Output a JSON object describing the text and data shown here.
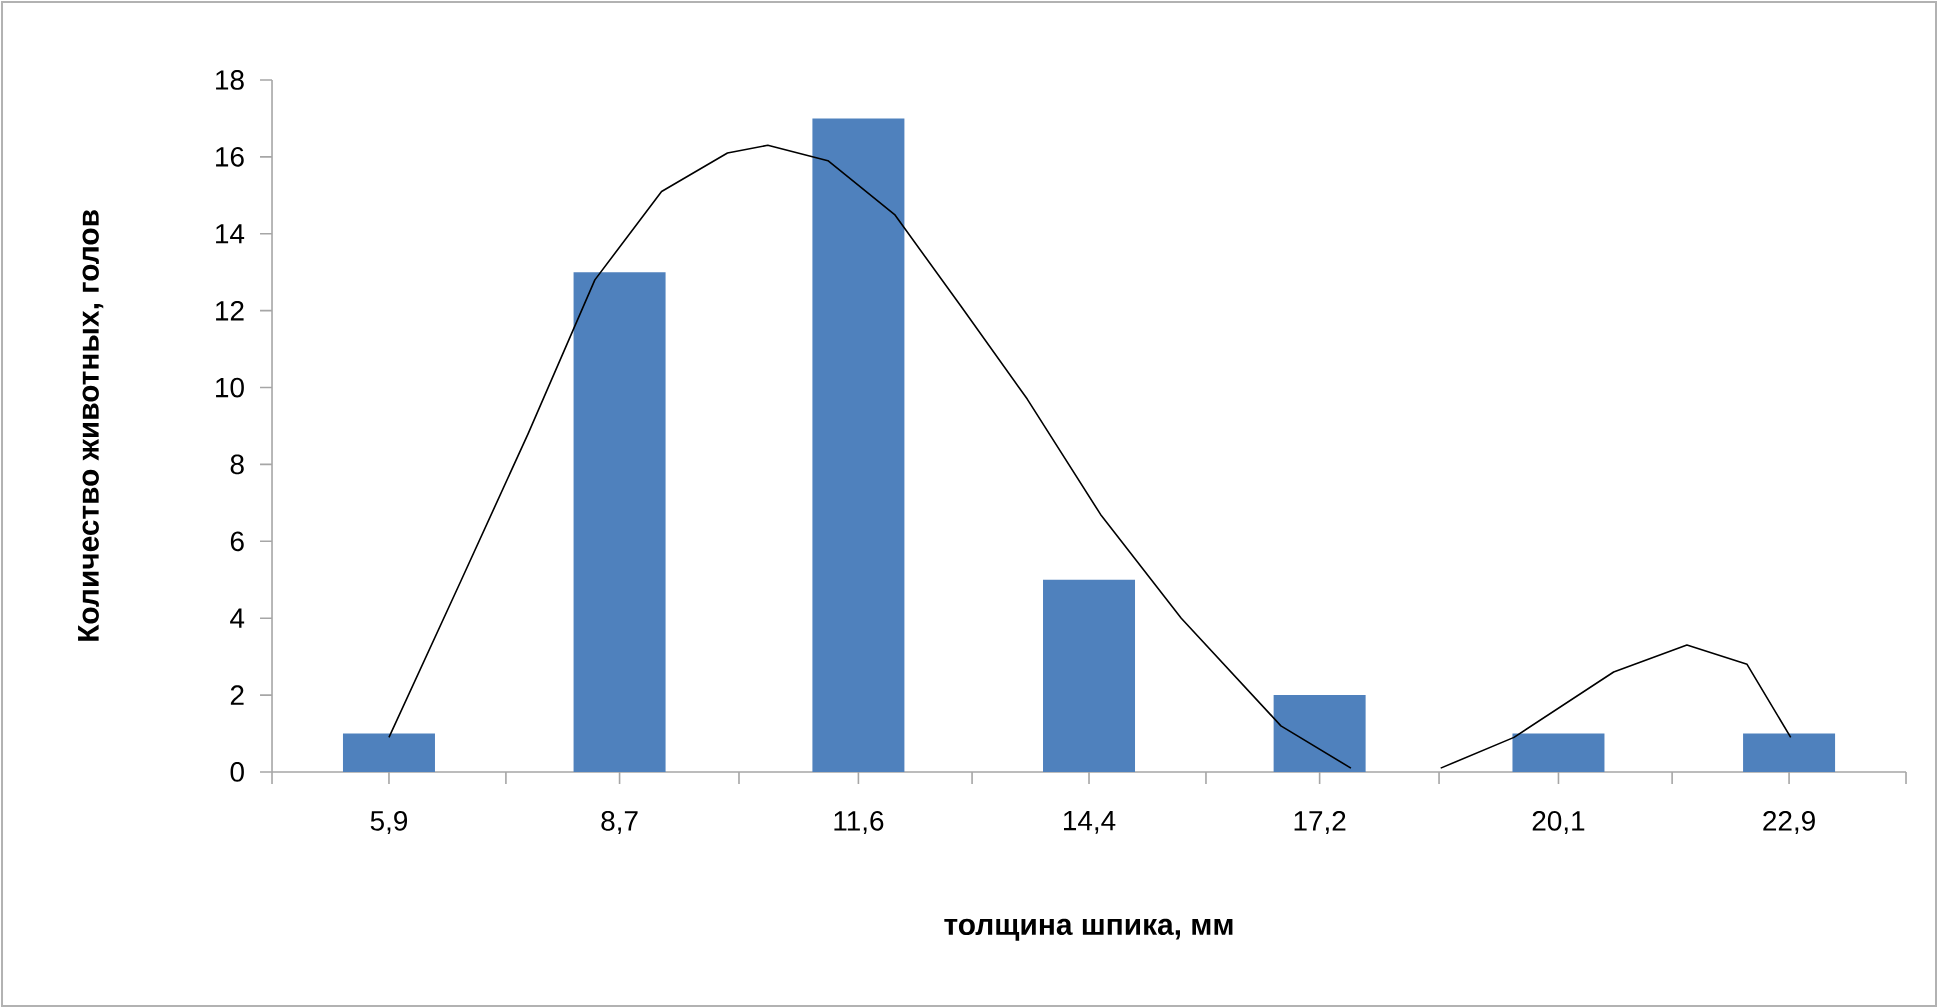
{
  "chart_data": {
    "type": "bar",
    "xlabel": "толщина шпика, мм",
    "ylabel": "Количество животных, голов",
    "x": [
      5.9,
      8.7,
      11.6,
      14.4,
      17.2,
      20.1,
      22.9
    ],
    "xlim": [
      4.48,
      24.32
    ],
    "xticks": [
      {
        "value": 4.48,
        "label": null
      },
      {
        "value": 5.9,
        "label": "5,9"
      },
      {
        "value": 7.32,
        "label": null
      },
      {
        "value": 8.7,
        "label": "8,7"
      },
      {
        "value": 10.15,
        "label": null
      },
      {
        "value": 11.6,
        "label": "11,6"
      },
      {
        "value": 12.98,
        "label": null
      },
      {
        "value": 14.4,
        "label": "14,4"
      },
      {
        "value": 15.82,
        "label": null
      },
      {
        "value": 17.2,
        "label": "17,2"
      },
      {
        "value": 18.65,
        "label": null
      },
      {
        "value": 20.1,
        "label": "20,1"
      },
      {
        "value": 21.48,
        "label": null
      },
      {
        "value": 22.9,
        "label": "22,9"
      },
      {
        "value": 24.32,
        "label": null
      }
    ],
    "ylim": [
      0,
      18
    ],
    "yticks": [
      0,
      2,
      4,
      6,
      8,
      10,
      12,
      14,
      16,
      18
    ],
    "marker": "none",
    "series": [
      {
        "type": "bar",
        "color": "#4f81bd",
        "values": [
          1,
          13,
          17,
          5,
          2,
          1,
          1
        ]
      },
      {
        "type": "line",
        "color": "#000000",
        "x": [
          5.9,
          6.78,
          7.59,
          8.4,
          9.21,
          10.01,
          10.5,
          11.23,
          12.04,
          12.85,
          13.65,
          14.54,
          15.52,
          16.73,
          17.58,
          18.1,
          18.67,
          19.56,
          20.77,
          21.66,
          22.39,
          22.92
        ],
        "values": [
          0.9,
          5.0,
          8.8,
          12.8,
          15.1,
          16.1,
          16.3,
          15.9,
          14.5,
          12.1,
          9.7,
          6.7,
          4.0,
          1.2,
          0.1,
          null,
          0.1,
          0.9,
          2.6,
          3.3,
          2.8,
          0.9
        ]
      }
    ]
  }
}
